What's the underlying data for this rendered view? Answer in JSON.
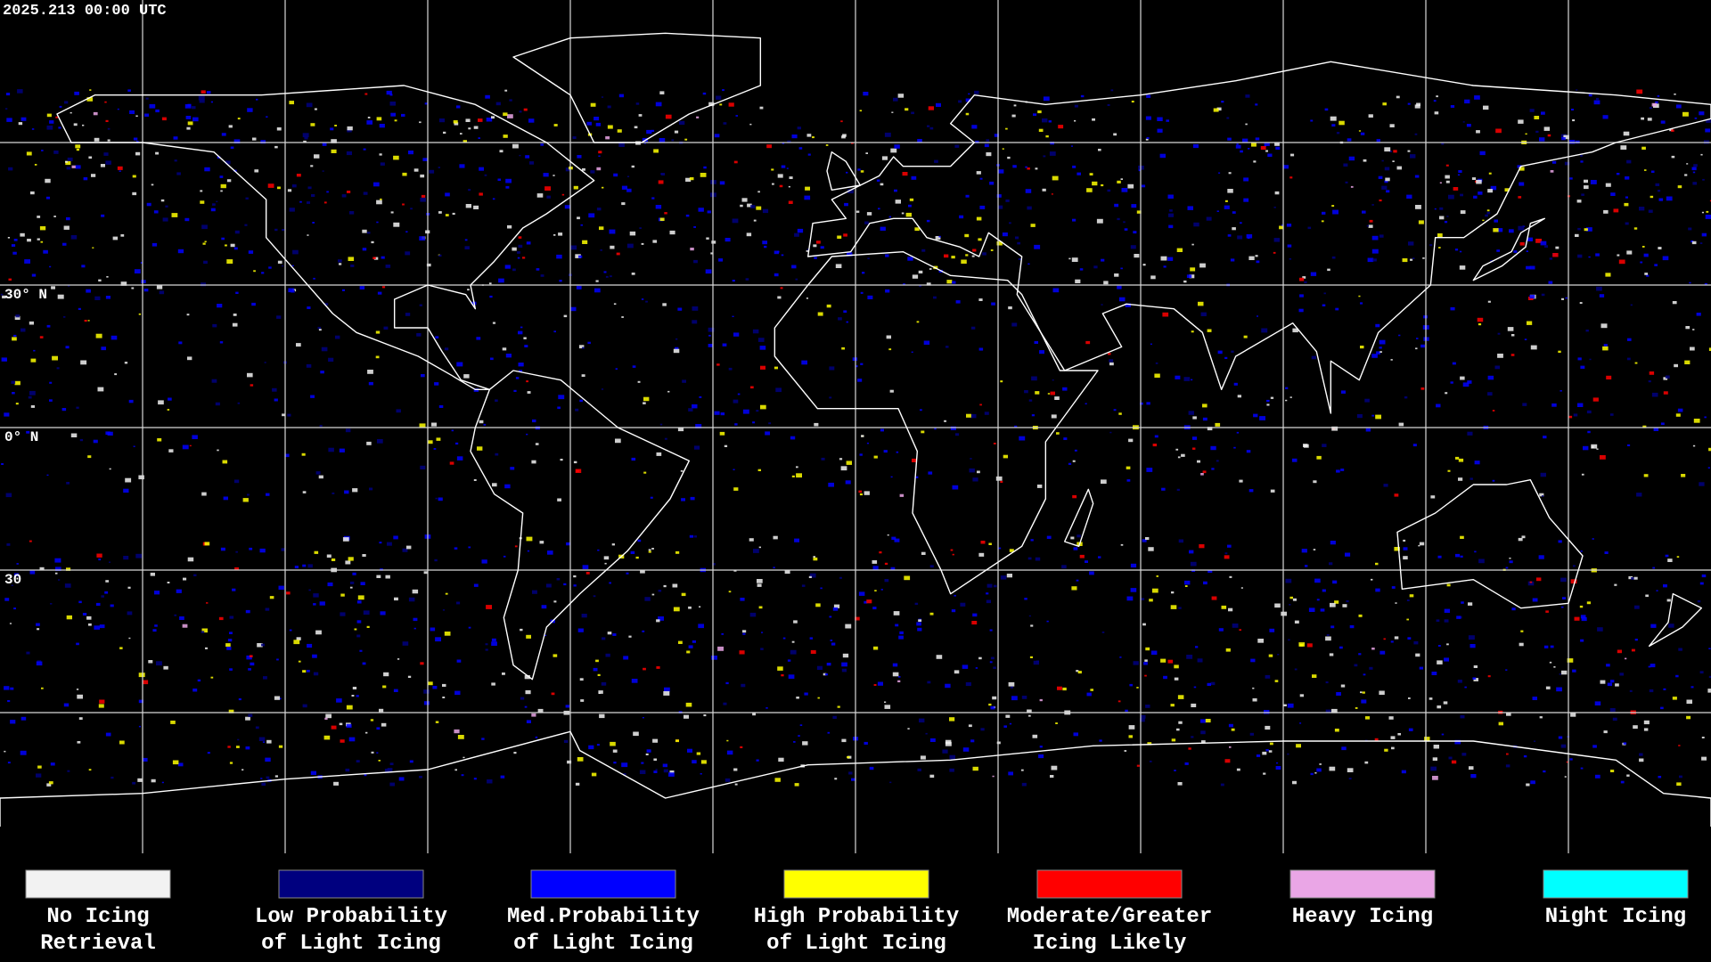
{
  "header": {
    "timestamp": "2025.213 00:00 UTC"
  },
  "map": {
    "latitude_labels": [
      "30° N",
      "0° N",
      "30"
    ]
  },
  "legend": {
    "items": [
      {
        "label": [
          "No Icing",
          "Retrieval"
        ],
        "color": "#f2f2f2"
      },
      {
        "label": [
          "Low Probability",
          "of Light Icing"
        ],
        "color": "#00007f"
      },
      {
        "label": [
          "Med.Probability",
          "of Light Icing"
        ],
        "color": "#0000ff"
      },
      {
        "label": [
          "High Probability",
          "of Light Icing"
        ],
        "color": "#ffff00"
      },
      {
        "label": [
          "Moderate/Greater",
          "Icing Likely"
        ],
        "color": "#ff0000"
      },
      {
        "label": [
          "Heavy Icing"
        ],
        "color": "#eaa6e6"
      },
      {
        "label": [
          "Night Icing"
        ],
        "color": "#00ffff"
      }
    ]
  }
}
